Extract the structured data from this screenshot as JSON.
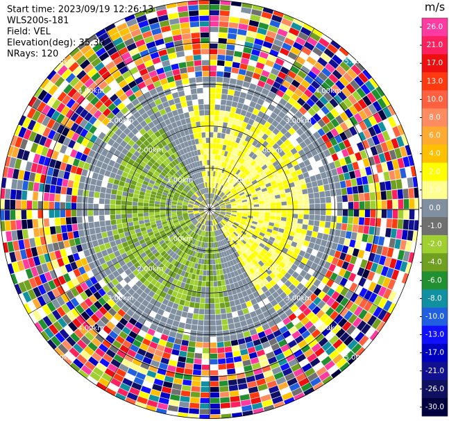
{
  "chart_data": {
    "type": "ppi",
    "header": [
      "Start time: 2023/09/19 12:26:13",
      "WLS200s-181",
      "Field: VEL",
      "Elevation(deg): 35.30",
      "NRays: 120"
    ],
    "range_rings": [
      {
        "value": 1,
        "label": "1.00km"
      },
      {
        "value": 2,
        "label": "2.00km"
      },
      {
        "value": 3,
        "label": "3.00km"
      },
      {
        "value": 4,
        "label": "4.00km"
      },
      {
        "value": 5,
        "label": "5.00km"
      }
    ],
    "colorbar": {
      "label": "m/s",
      "ticks": [
        {
          "value": 26,
          "label": "26.0"
        },
        {
          "value": 21,
          "label": "21.0"
        },
        {
          "value": 17,
          "label": "17.0"
        },
        {
          "value": 13,
          "label": "13.0"
        },
        {
          "value": 10,
          "label": "10.0"
        },
        {
          "value": 8,
          "label": "8.0"
        },
        {
          "value": 6,
          "label": "6.0"
        },
        {
          "value": 4,
          "label": "4.0"
        },
        {
          "value": 2,
          "label": "2.0"
        },
        {
          "value": 1,
          "label": "1.0"
        },
        {
          "value": 0,
          "label": "0.0"
        },
        {
          "value": -1,
          "label": "-1.0"
        },
        {
          "value": -2,
          "label": "-2.0"
        },
        {
          "value": -4,
          "label": "-4.0"
        },
        {
          "value": -6,
          "label": "-6.0"
        },
        {
          "value": -8,
          "label": "-8.0"
        },
        {
          "value": -10,
          "label": "-10.0"
        },
        {
          "value": -13,
          "label": "-13.0"
        },
        {
          "value": -17,
          "label": "-17.0"
        },
        {
          "value": -21,
          "label": "-21.0"
        },
        {
          "value": -26,
          "label": "-26.0"
        },
        {
          "value": -30,
          "label": "-30.0"
        }
      ],
      "colors": [
        "#ff3aa0",
        "#ff2060",
        "#ee1010",
        "#ff3a10",
        "#ff6040",
        "#ff8c60",
        "#ffaa30",
        "#ffc000",
        "#ffff00",
        "#ffff90",
        "#8090a0",
        "#707070",
        "#a0d030",
        "#70a020",
        "#209030",
        "#1090a0",
        "#2060e0",
        "#1010ff",
        "#0000c0",
        "#101090",
        "#101060",
        "#000040"
      ]
    }
  }
}
